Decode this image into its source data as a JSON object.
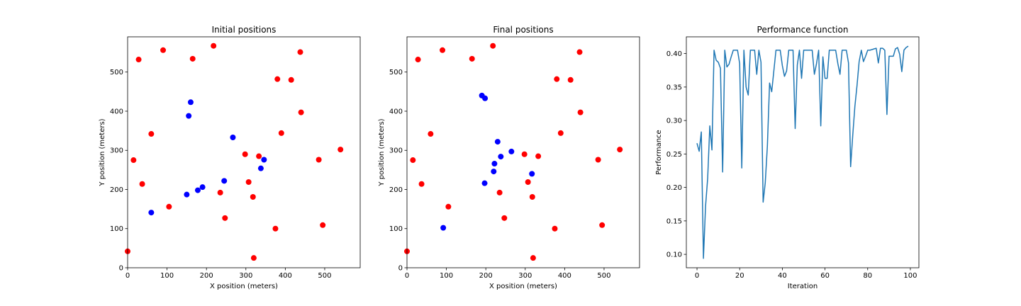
{
  "chart_data": [
    {
      "type": "scatter",
      "title": "Initial positions",
      "xlabel": "X position (meters)",
      "ylabel": "Y position (meters)",
      "xlim": [
        0,
        590
      ],
      "ylim": [
        0,
        590
      ],
      "xticks": [
        0,
        100,
        200,
        300,
        400,
        500
      ],
      "yticks": [
        0,
        100,
        200,
        300,
        400,
        500
      ],
      "grid": false,
      "series": [
        {
          "color": "#ff0000",
          "points": [
            [
              0,
              42
            ],
            [
              15,
              275
            ],
            [
              28,
              532
            ],
            [
              37,
              214
            ],
            [
              60,
              342
            ],
            [
              90,
              556
            ],
            [
              105,
              156
            ],
            [
              165,
              534
            ],
            [
              218,
              567
            ],
            [
              235,
              192
            ],
            [
              247,
              127
            ],
            [
              298,
              290
            ],
            [
              307,
              219
            ],
            [
              318,
              181
            ],
            [
              320,
              25
            ],
            [
              333,
              285
            ],
            [
              375,
              100
            ],
            [
              380,
              482
            ],
            [
              390,
              344
            ],
            [
              415,
              480
            ],
            [
              438,
              551
            ],
            [
              440,
              397
            ],
            [
              485,
              276
            ],
            [
              495,
              109
            ],
            [
              540,
              302
            ]
          ]
        },
        {
          "color": "#0000ff",
          "points": [
            [
              60,
              141
            ],
            [
              150,
              187
            ],
            [
              155,
              388
            ],
            [
              160,
              423
            ],
            [
              178,
              198
            ],
            [
              190,
              206
            ],
            [
              245,
              222
            ],
            [
              267,
              333
            ],
            [
              338,
              254
            ],
            [
              346,
              276
            ]
          ]
        }
      ]
    },
    {
      "type": "scatter",
      "title": "Final positions",
      "xlabel": "X position (meters)",
      "ylabel": "Y position (meters)",
      "xlim": [
        0,
        590
      ],
      "ylim": [
        0,
        590
      ],
      "xticks": [
        0,
        100,
        200,
        300,
        400,
        500
      ],
      "yticks": [
        0,
        100,
        200,
        300,
        400,
        500
      ],
      "grid": false,
      "series": [
        {
          "color": "#ff0000",
          "points": [
            [
              0,
              42
            ],
            [
              15,
              275
            ],
            [
              28,
              532
            ],
            [
              37,
              214
            ],
            [
              60,
              342
            ],
            [
              90,
              556
            ],
            [
              105,
              156
            ],
            [
              165,
              534
            ],
            [
              218,
              567
            ],
            [
              235,
              192
            ],
            [
              247,
              127
            ],
            [
              298,
              290
            ],
            [
              307,
              219
            ],
            [
              318,
              181
            ],
            [
              320,
              25
            ],
            [
              333,
              285
            ],
            [
              375,
              100
            ],
            [
              380,
              482
            ],
            [
              390,
              344
            ],
            [
              415,
              480
            ],
            [
              438,
              551
            ],
            [
              440,
              397
            ],
            [
              485,
              276
            ],
            [
              495,
              109
            ],
            [
              540,
              302
            ]
          ]
        },
        {
          "color": "#0000ff",
          "points": [
            [
              92,
              102
            ],
            [
              190,
              440
            ],
            [
              198,
              433
            ],
            [
              197,
              216
            ],
            [
              220,
              246
            ],
            [
              222,
              266
            ],
            [
              230,
              322
            ],
            [
              238,
              284
            ],
            [
              265,
              297
            ],
            [
              317,
              240
            ]
          ]
        }
      ]
    },
    {
      "type": "line",
      "title": "Performance function",
      "xlabel": "Iteration",
      "ylabel": "Performance",
      "xlim": [
        -5,
        104
      ],
      "ylim": [
        0.08,
        0.425
      ],
      "xticks": [
        0,
        20,
        40,
        60,
        80,
        100
      ],
      "yticks": [
        0.1,
        0.15,
        0.2,
        0.25,
        0.3,
        0.35,
        0.4
      ],
      "ytick_labels": [
        "0.10",
        "0.15",
        "0.20",
        "0.25",
        "0.30",
        "0.35",
        "0.40"
      ],
      "grid": false,
      "series": [
        {
          "color": "#1f77b4",
          "x": [
            0,
            1,
            2,
            3,
            4,
            5,
            6,
            7,
            8,
            9,
            10,
            11,
            12,
            13,
            14,
            15,
            16,
            17,
            18,
            19,
            20,
            21,
            22,
            23,
            24,
            25,
            26,
            27,
            28,
            29,
            30,
            31,
            32,
            33,
            34,
            35,
            36,
            37,
            38,
            39,
            40,
            41,
            42,
            43,
            44,
            45,
            46,
            47,
            48,
            49,
            50,
            51,
            52,
            53,
            54,
            55,
            56,
            57,
            58,
            59,
            60,
            61,
            62,
            63,
            64,
            65,
            66,
            67,
            68,
            69,
            70,
            71,
            72,
            73,
            74,
            75,
            76,
            77,
            78,
            79,
            80,
            81,
            82,
            83,
            84,
            85,
            86,
            87,
            88,
            89,
            90,
            91,
            92,
            93,
            94,
            95,
            96,
            97,
            98,
            99
          ],
          "y": [
            0.266,
            0.254,
            0.283,
            0.094,
            0.172,
            0.214,
            0.292,
            0.256,
            0.405,
            0.39,
            0.387,
            0.378,
            0.223,
            0.405,
            0.38,
            0.384,
            0.395,
            0.405,
            0.405,
            0.405,
            0.385,
            0.229,
            0.405,
            0.35,
            0.338,
            0.405,
            0.405,
            0.405,
            0.369,
            0.405,
            0.387,
            0.178,
            0.207,
            0.262,
            0.356,
            0.343,
            0.374,
            0.405,
            0.405,
            0.405,
            0.382,
            0.366,
            0.374,
            0.405,
            0.405,
            0.405,
            0.288,
            0.383,
            0.405,
            0.363,
            0.405,
            0.405,
            0.405,
            0.405,
            0.405,
            0.369,
            0.385,
            0.405,
            0.292,
            0.395,
            0.363,
            0.363,
            0.405,
            0.405,
            0.405,
            0.405,
            0.385,
            0.369,
            0.405,
            0.405,
            0.405,
            0.386,
            0.231,
            0.278,
            0.321,
            0.352,
            0.388,
            0.405,
            0.388,
            0.396,
            0.405,
            0.405,
            0.406,
            0.407,
            0.408,
            0.386,
            0.408,
            0.408,
            0.405,
            0.309,
            0.396,
            0.396,
            0.396,
            0.407,
            0.409,
            0.399,
            0.373,
            0.405,
            0.409,
            0.411
          ]
        }
      ]
    }
  ]
}
